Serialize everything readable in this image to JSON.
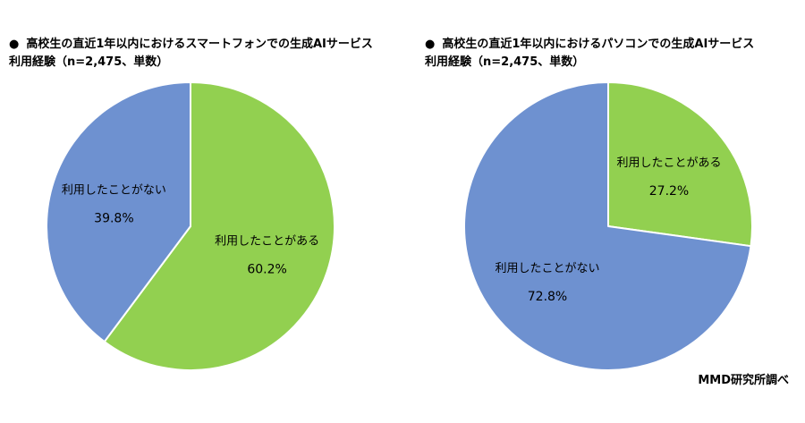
{
  "bullet": "●",
  "source_note": "MMD研究所調べ",
  "colors": {
    "used": "#92D050",
    "not_used": "#6E91D0",
    "separator": "#FFFFFF"
  },
  "chart_data": [
    {
      "type": "pie",
      "title_line1": "高校生の直近1年以内におけるスマートフォンでの生成AIサービス",
      "title_line2": "利用経験（n=2,475、単数）",
      "start_angle_deg": 0,
      "direction": "clockwise",
      "slices": [
        {
          "label": "利用したことがある",
          "value": 60.2,
          "display": "60.2%",
          "color": "#92D050"
        },
        {
          "label": "利用したことがない",
          "value": 39.8,
          "display": "39.8%",
          "color": "#6E91D0"
        }
      ]
    },
    {
      "type": "pie",
      "title_line1": "高校生の直近1年以内におけるパソコンでの生成AIサービス",
      "title_line2": "利用経験（n=2,475、単数）",
      "start_angle_deg": 0,
      "direction": "clockwise",
      "slices": [
        {
          "label": "利用したことがある",
          "value": 27.2,
          "display": "27.2%",
          "color": "#92D050"
        },
        {
          "label": "利用したことがない",
          "value": 72.8,
          "display": "72.8%",
          "color": "#6E91D0"
        }
      ]
    }
  ]
}
